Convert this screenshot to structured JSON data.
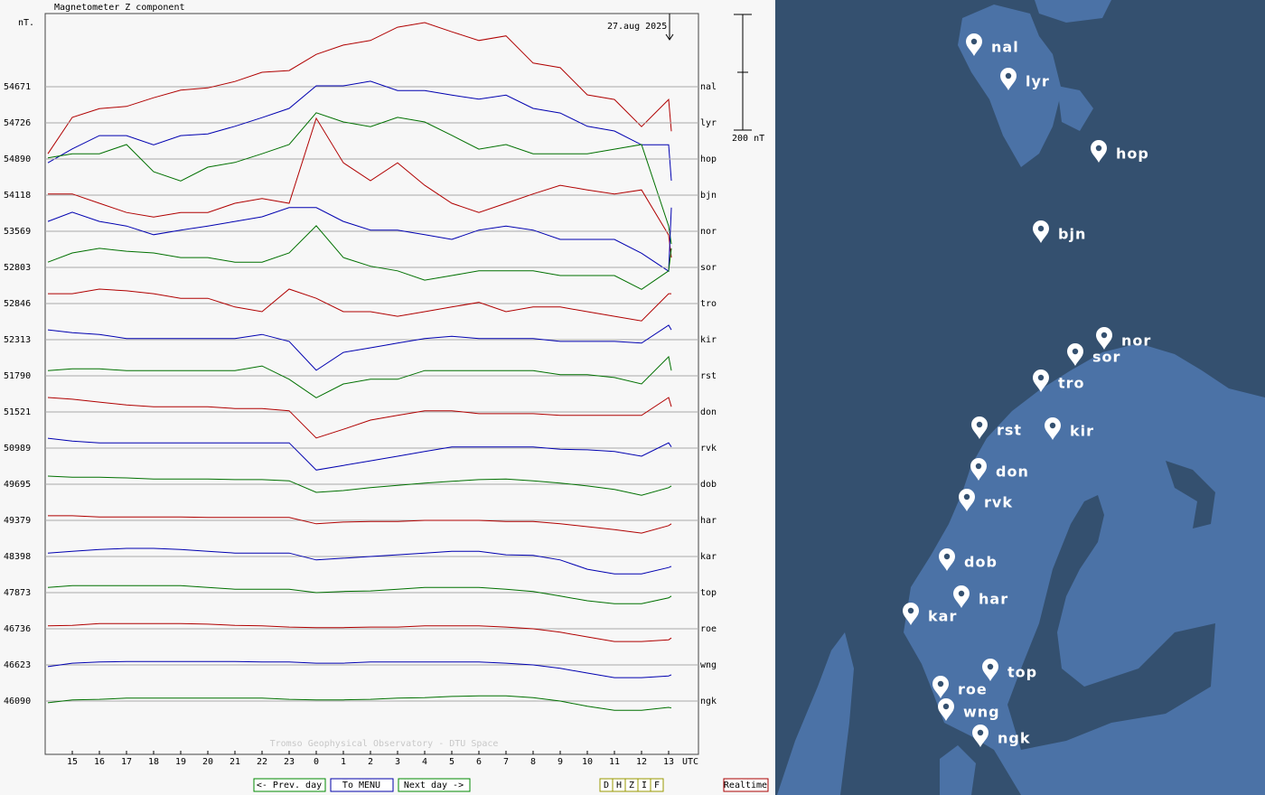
{
  "chart_data": {
    "type": "line",
    "title": "Magnetometer Z component",
    "ylabel": "nT.",
    "xlabel": "UTC",
    "date": "27.aug 2025",
    "watermark": "Tromso Geophysical Observatory - DTU Space",
    "scale": {
      "value": 200,
      "label": "200 nT"
    },
    "xlim": [
      14,
      38
    ],
    "xticks": [
      15,
      16,
      17,
      18,
      19,
      20,
      21,
      22,
      23,
      {
        "value": 24,
        "label": "0"
      },
      {
        "value": 25,
        "label": "1"
      },
      {
        "value": 26,
        "label": "2"
      },
      {
        "value": 27,
        "label": "3"
      },
      {
        "value": 28,
        "label": "4"
      },
      {
        "value": 29,
        "label": "5"
      },
      {
        "value": 30,
        "label": "6"
      },
      {
        "value": 31,
        "label": "7"
      },
      {
        "value": 32,
        "label": "8"
      },
      {
        "value": 33,
        "label": "9"
      },
      {
        "value": 34,
        "label": "10"
      },
      {
        "value": 35,
        "label": "11"
      },
      {
        "value": 36,
        "label": "12"
      },
      {
        "value": 37,
        "label": "13"
      }
    ],
    "x": [
      14.1,
      15,
      16,
      17,
      18,
      19,
      20,
      21,
      22,
      23,
      24,
      25,
      26,
      27,
      28,
      29,
      30,
      31,
      32,
      33,
      34,
      35,
      36,
      37,
      37.1
    ],
    "series": [
      {
        "name": "nal",
        "baseline": 54671,
        "color": "#b00000",
        "values": [
          -116,
          -53,
          -38,
          -34,
          -19,
          -6,
          -2,
          9,
          25,
          28,
          56,
          72,
          80,
          103,
          111,
          95,
          80,
          88,
          41,
          33,
          -14,
          -22,
          -69,
          -22,
          -77
        ]
      },
      {
        "name": "lyr",
        "baseline": 54726,
        "color": "#0000b0",
        "values": [
          -69,
          -45,
          -22,
          -22,
          -38,
          -22,
          -19,
          -6,
          9,
          25,
          64,
          64,
          72,
          56,
          56,
          48,
          41,
          48,
          25,
          17,
          -6,
          -14,
          -38,
          -38,
          -100
        ]
      },
      {
        "name": "hop",
        "baseline": 54890,
        "color": "#007000",
        "values": [
          2,
          9,
          9,
          25,
          -22,
          -38,
          -14,
          -6,
          9,
          25,
          80,
          64,
          56,
          72,
          64,
          41,
          17,
          25,
          9,
          9,
          9,
          17,
          25,
          -116,
          -147
        ]
      },
      {
        "name": "bjn",
        "baseline": 54118,
        "color": "#b00000",
        "values": [
          2,
          2,
          -14,
          -30,
          -38,
          -30,
          -30,
          -14,
          -6,
          -14,
          133,
          56,
          25,
          56,
          17,
          -14,
          -30,
          -14,
          2,
          17,
          9,
          2,
          9,
          -69,
          -108
        ]
      },
      {
        "name": "nor",
        "baseline": 53569,
        "color": "#0000b0",
        "values": [
          17,
          33,
          17,
          9,
          -6,
          2,
          9,
          17,
          25,
          41,
          41,
          17,
          2,
          2,
          -6,
          -14,
          2,
          9,
          2,
          -14,
          -14,
          -14,
          -38,
          -69,
          41
        ]
      },
      {
        "name": "sor",
        "baseline": 52803,
        "color": "#007000",
        "values": [
          9,
          25,
          33,
          28,
          25,
          17,
          17,
          9,
          9,
          25,
          72,
          17,
          2,
          -6,
          -22,
          -14,
          -6,
          -6,
          -6,
          -14,
          -14,
          -14,
          -38,
          -6,
          33
        ]
      },
      {
        "name": "tro",
        "baseline": 52846,
        "color": "#b00000",
        "values": [
          17,
          17,
          25,
          22,
          17,
          9,
          9,
          -6,
          -14,
          25,
          9,
          -14,
          -14,
          -22,
          -14,
          -6,
          2,
          -14,
          -6,
          -6,
          -14,
          -22,
          -30,
          17,
          17
        ]
      },
      {
        "name": "kir",
        "baseline": 52313,
        "color": "#0000b0",
        "values": [
          17,
          12,
          9,
          2,
          2,
          2,
          2,
          2,
          9,
          -3,
          -53,
          -22,
          -14,
          -6,
          2,
          6,
          2,
          2,
          2,
          -3,
          -3,
          -3,
          -6,
          25,
          17
        ]
      },
      {
        "name": "rst",
        "baseline": 51790,
        "color": "#007000",
        "values": [
          9,
          12,
          12,
          9,
          9,
          9,
          9,
          9,
          17,
          -6,
          -38,
          -14,
          -6,
          -6,
          9,
          9,
          9,
          9,
          9,
          2,
          2,
          -3,
          -14,
          33,
          9
        ]
      },
      {
        "name": "don",
        "baseline": 51521,
        "color": "#b00000",
        "values": [
          25,
          22,
          17,
          12,
          9,
          9,
          9,
          6,
          6,
          2,
          -45,
          -30,
          -14,
          -6,
          2,
          2,
          -3,
          -3,
          -3,
          -6,
          -6,
          -6,
          -6,
          25,
          9
        ]
      },
      {
        "name": "rvk",
        "baseline": 50989,
        "color": "#0000b0",
        "values": [
          17,
          12,
          9,
          9,
          9,
          9,
          9,
          9,
          9,
          9,
          -38,
          -30,
          -22,
          -14,
          -6,
          2,
          2,
          2,
          2,
          -2,
          -3,
          -6,
          -14,
          9,
          2
        ]
      },
      {
        "name": "dob",
        "baseline": 49695,
        "color": "#007000",
        "values": [
          14,
          12,
          12,
          11,
          9,
          9,
          9,
          8,
          8,
          6,
          -14,
          -11,
          -6,
          -2,
          2,
          5,
          8,
          9,
          6,
          2,
          -3,
          -9,
          -19,
          -6,
          -3
        ]
      },
      {
        "name": "har",
        "baseline": 49379,
        "color": "#b00000",
        "values": [
          8,
          8,
          6,
          6,
          6,
          6,
          5,
          5,
          5,
          5,
          -6,
          -3,
          -2,
          -2,
          0,
          0,
          0,
          -2,
          -2,
          -6,
          -11,
          -16,
          -22,
          -9,
          -6
        ]
      },
      {
        "name": "kar",
        "baseline": 48398,
        "color": "#0000b0",
        "values": [
          6,
          9,
          12,
          14,
          14,
          12,
          9,
          6,
          6,
          6,
          -6,
          -3,
          0,
          3,
          6,
          9,
          9,
          3,
          2,
          -6,
          -22,
          -30,
          -30,
          -19,
          -17
        ]
      },
      {
        "name": "top",
        "baseline": 47873,
        "color": "#007000",
        "values": [
          9,
          12,
          12,
          12,
          12,
          12,
          9,
          6,
          6,
          6,
          0,
          2,
          3,
          6,
          9,
          9,
          9,
          6,
          2,
          -6,
          -14,
          -19,
          -19,
          -9,
          -6
        ]
      },
      {
        "name": "roe",
        "baseline": 46736,
        "color": "#b00000",
        "values": [
          5,
          6,
          9,
          9,
          9,
          9,
          8,
          6,
          5,
          3,
          2,
          2,
          3,
          3,
          5,
          5,
          5,
          3,
          0,
          -6,
          -14,
          -22,
          -22,
          -19,
          -16
        ]
      },
      {
        "name": "wng",
        "baseline": 46623,
        "color": "#0000b0",
        "values": [
          -3,
          3,
          5,
          6,
          6,
          6,
          6,
          6,
          5,
          5,
          3,
          3,
          5,
          5,
          5,
          5,
          5,
          3,
          0,
          -6,
          -14,
          -22,
          -22,
          -19,
          -17
        ]
      },
      {
        "name": "ngk",
        "baseline": 46090,
        "color": "#007000",
        "values": [
          -3,
          2,
          3,
          5,
          5,
          5,
          5,
          5,
          5,
          3,
          2,
          2,
          3,
          5,
          6,
          8,
          9,
          9,
          6,
          0,
          -9,
          -16,
          -16,
          -11,
          -12
        ]
      }
    ]
  },
  "buttons": {
    "prev": "<- Prev. day",
    "menu": "To MENU",
    "next": "Next day ->",
    "components": [
      "D",
      "H",
      "Z",
      "I",
      "F"
    ],
    "realtime": "Realtime"
  },
  "map": {
    "labels": [
      "nal",
      "lyr",
      "hop",
      "bjn",
      "nor",
      "sor",
      "tro",
      "rst",
      "kir",
      "don",
      "rvk",
      "dob",
      "har",
      "kar",
      "top",
      "roe",
      "wng",
      "ngk"
    ]
  }
}
